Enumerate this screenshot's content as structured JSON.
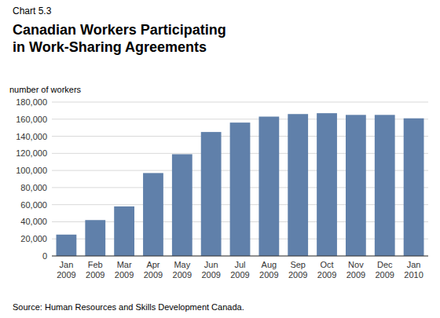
{
  "chart_data": {
    "type": "bar",
    "annotations": [
      "Chart 5.3",
      "Source: Human Resources and Skills Development Canada."
    ],
    "title": "Canadian Workers Participating\nin Work-Sharing Agreements",
    "ylabel": "number of workers",
    "categories": [
      "Jan\n2009",
      "Feb\n2009",
      "Mar\n2009",
      "Apr\n2009",
      "May\n2009",
      "Jun\n2009",
      "Jul\n2009",
      "Aug\n2009",
      "Sep\n2009",
      "Oct\n2009",
      "Nov\n2009",
      "Dec\n2009",
      "Jan\n2010"
    ],
    "values": [
      25000,
      42000,
      58000,
      97000,
      119000,
      145000,
      156000,
      163000,
      166000,
      167000,
      165000,
      165000,
      161000
    ],
    "color": "#6080aa",
    "ylim": [
      0,
      180000
    ],
    "yticks": [
      0,
      {
        "value": 20000,
        "label": "20,000"
      },
      {
        "value": 40000,
        "label": "40,000"
      },
      {
        "value": 60000,
        "label": "60,000"
      },
      {
        "value": 80000,
        "label": "80,000"
      },
      {
        "value": 100000,
        "label": "100,000"
      },
      {
        "value": 120000,
        "label": "120,000"
      },
      {
        "value": 140000,
        "label": "140,000"
      },
      {
        "value": 160000,
        "label": "160,000"
      },
      {
        "value": 180000,
        "label": "180,000"
      }
    ],
    "grid": true
  }
}
